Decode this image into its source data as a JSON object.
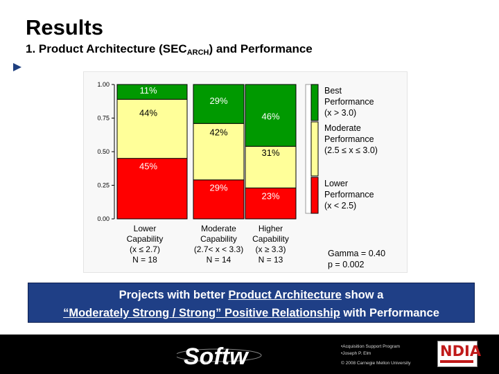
{
  "header": {
    "title": "Results",
    "subtitle_prefix": "1. Product Architecture (SEC",
    "subtitle_sub": "ARCH",
    "subtitle_suffix": ") and Performance"
  },
  "chart_data": {
    "type": "bar",
    "stacked": true,
    "ylim": [
      0,
      1
    ],
    "y_ticks": [
      "0.00",
      "0.25",
      "0.50",
      "0.75",
      "1.00"
    ],
    "categories": [
      {
        "lines": [
          "Lower",
          "Capability",
          "(x ≤ 2.7)",
          "N = 18"
        ]
      },
      {
        "lines": [
          "Moderate",
          "Capability",
          "(2.7< x < 3.3)",
          "N = 14"
        ]
      },
      {
        "lines": [
          "Higher",
          "Capability",
          "(x ≥ 3.3)",
          "N = 13"
        ]
      }
    ],
    "series": [
      {
        "key": "lower",
        "color": "#ff0000",
        "values": [
          0.45,
          0.29,
          0.23
        ],
        "labels": [
          "45%",
          "29%",
          "23%"
        ]
      },
      {
        "key": "moderate",
        "color": "#ffff99",
        "values": [
          0.44,
          0.42,
          0.31
        ],
        "labels": [
          "44%",
          "42%",
          "31%"
        ]
      },
      {
        "key": "best",
        "color": "#009900",
        "values": [
          0.11,
          0.29,
          0.46
        ],
        "labels": [
          "11%",
          "29%",
          "46%"
        ]
      }
    ],
    "legend": [
      {
        "color": "#009900",
        "lines": [
          "Best",
          "Performance",
          "(x > 3.0)"
        ]
      },
      {
        "color": "#ffff99",
        "lines": [
          "Moderate",
          "Performance",
          "(2.5 ≤ x ≤ 3.0)"
        ]
      },
      {
        "color": "#ff0000",
        "lines": [
          "Lower",
          "Performance",
          "(x < 2.5)"
        ]
      }
    ],
    "stats": [
      "Gamma = 0.40",
      "p = 0.002"
    ]
  },
  "banner": {
    "line1_prefix": "Projects with better ",
    "line1_link": "Product Architecture",
    "line1_suffix": " show a",
    "line2_link": "“Moderately Strong / Strong” Positive Relationship",
    "line2_suffix": " with  Performance"
  },
  "footer": {
    "logo_text": "Softw",
    "notes": [
      "•Acquisition Support Program",
      "•Joseph P. Elm",
      "© 2008 Carnegie Mellon University"
    ],
    "ndia_text": "NDIA"
  }
}
